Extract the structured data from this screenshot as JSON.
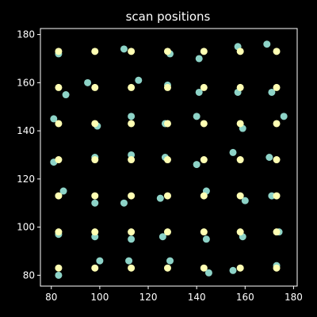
{
  "chart_data": {
    "type": "scatter",
    "title": "scan positions",
    "xlabel": "",
    "ylabel": "",
    "xlim": [
      75.5,
      181.5
    ],
    "ylim": [
      75.5,
      182.5
    ],
    "xticks": [
      80,
      100,
      120,
      140,
      160,
      180
    ],
    "yticks": [
      80,
      100,
      120,
      140,
      160,
      180
    ],
    "grid": false,
    "legend": "none",
    "colors": {
      "background": "#000000",
      "axes": "#ffffff",
      "text": "#ffffff",
      "series_1": "#8dd3c7",
      "series_2": "#ffffb3"
    },
    "series": [
      {
        "points": [
          [
            83,
            172
          ],
          [
            110,
            174
          ],
          [
            129,
            172
          ],
          [
            141,
            170
          ],
          [
            157,
            175
          ],
          [
            169,
            176
          ],
          [
            95,
            160
          ],
          [
            116,
            161
          ],
          [
            86,
            155
          ],
          [
            128,
            159
          ],
          [
            141,
            156
          ],
          [
            157,
            156
          ],
          [
            171,
            156
          ],
          [
            81,
            145
          ],
          [
            99,
            142
          ],
          [
            113,
            146
          ],
          [
            127,
            143
          ],
          [
            140,
            146
          ],
          [
            159,
            141
          ],
          [
            176,
            146
          ],
          [
            81,
            127
          ],
          [
            98,
            129
          ],
          [
            113,
            130
          ],
          [
            127,
            129
          ],
          [
            140,
            126
          ],
          [
            155,
            131
          ],
          [
            170,
            129
          ],
          [
            85,
            115
          ],
          [
            98,
            110
          ],
          [
            110,
            110
          ],
          [
            125,
            112
          ],
          [
            144,
            115
          ],
          [
            160,
            111
          ],
          [
            171,
            113
          ],
          [
            83,
            97
          ],
          [
            98,
            96
          ],
          [
            113,
            95
          ],
          [
            126,
            96
          ],
          [
            144,
            95
          ],
          [
            159,
            96
          ],
          [
            174,
            98
          ],
          [
            83,
            80
          ],
          [
            100,
            86
          ],
          [
            112,
            86
          ],
          [
            129,
            86
          ],
          [
            145,
            81
          ],
          [
            155,
            82
          ],
          [
            173,
            84
          ]
        ]
      },
      {
        "points": [
          [
            83,
            173
          ],
          [
            98,
            173
          ],
          [
            113,
            173
          ],
          [
            128,
            173
          ],
          [
            143,
            173
          ],
          [
            158,
            173
          ],
          [
            173,
            173
          ],
          [
            83,
            158
          ],
          [
            98,
            158
          ],
          [
            113,
            158
          ],
          [
            128,
            158
          ],
          [
            143,
            158
          ],
          [
            158,
            158
          ],
          [
            173,
            158
          ],
          [
            83,
            143
          ],
          [
            98,
            143
          ],
          [
            113,
            143
          ],
          [
            128,
            143
          ],
          [
            143,
            143
          ],
          [
            158,
            143
          ],
          [
            173,
            143
          ],
          [
            83,
            128
          ],
          [
            98,
            128
          ],
          [
            113,
            128
          ],
          [
            128,
            128
          ],
          [
            143,
            128
          ],
          [
            158,
            128
          ],
          [
            173,
            128
          ],
          [
            83,
            113
          ],
          [
            98,
            113
          ],
          [
            113,
            113
          ],
          [
            128,
            113
          ],
          [
            143,
            113
          ],
          [
            158,
            113
          ],
          [
            173,
            113
          ],
          [
            83,
            98
          ],
          [
            98,
            98
          ],
          [
            113,
            98
          ],
          [
            128,
            98
          ],
          [
            143,
            98
          ],
          [
            158,
            98
          ],
          [
            173,
            98
          ],
          [
            83,
            83
          ],
          [
            98,
            83
          ],
          [
            113,
            83
          ],
          [
            128,
            83
          ],
          [
            143,
            83
          ],
          [
            158,
            83
          ],
          [
            173,
            83
          ]
        ]
      }
    ]
  }
}
